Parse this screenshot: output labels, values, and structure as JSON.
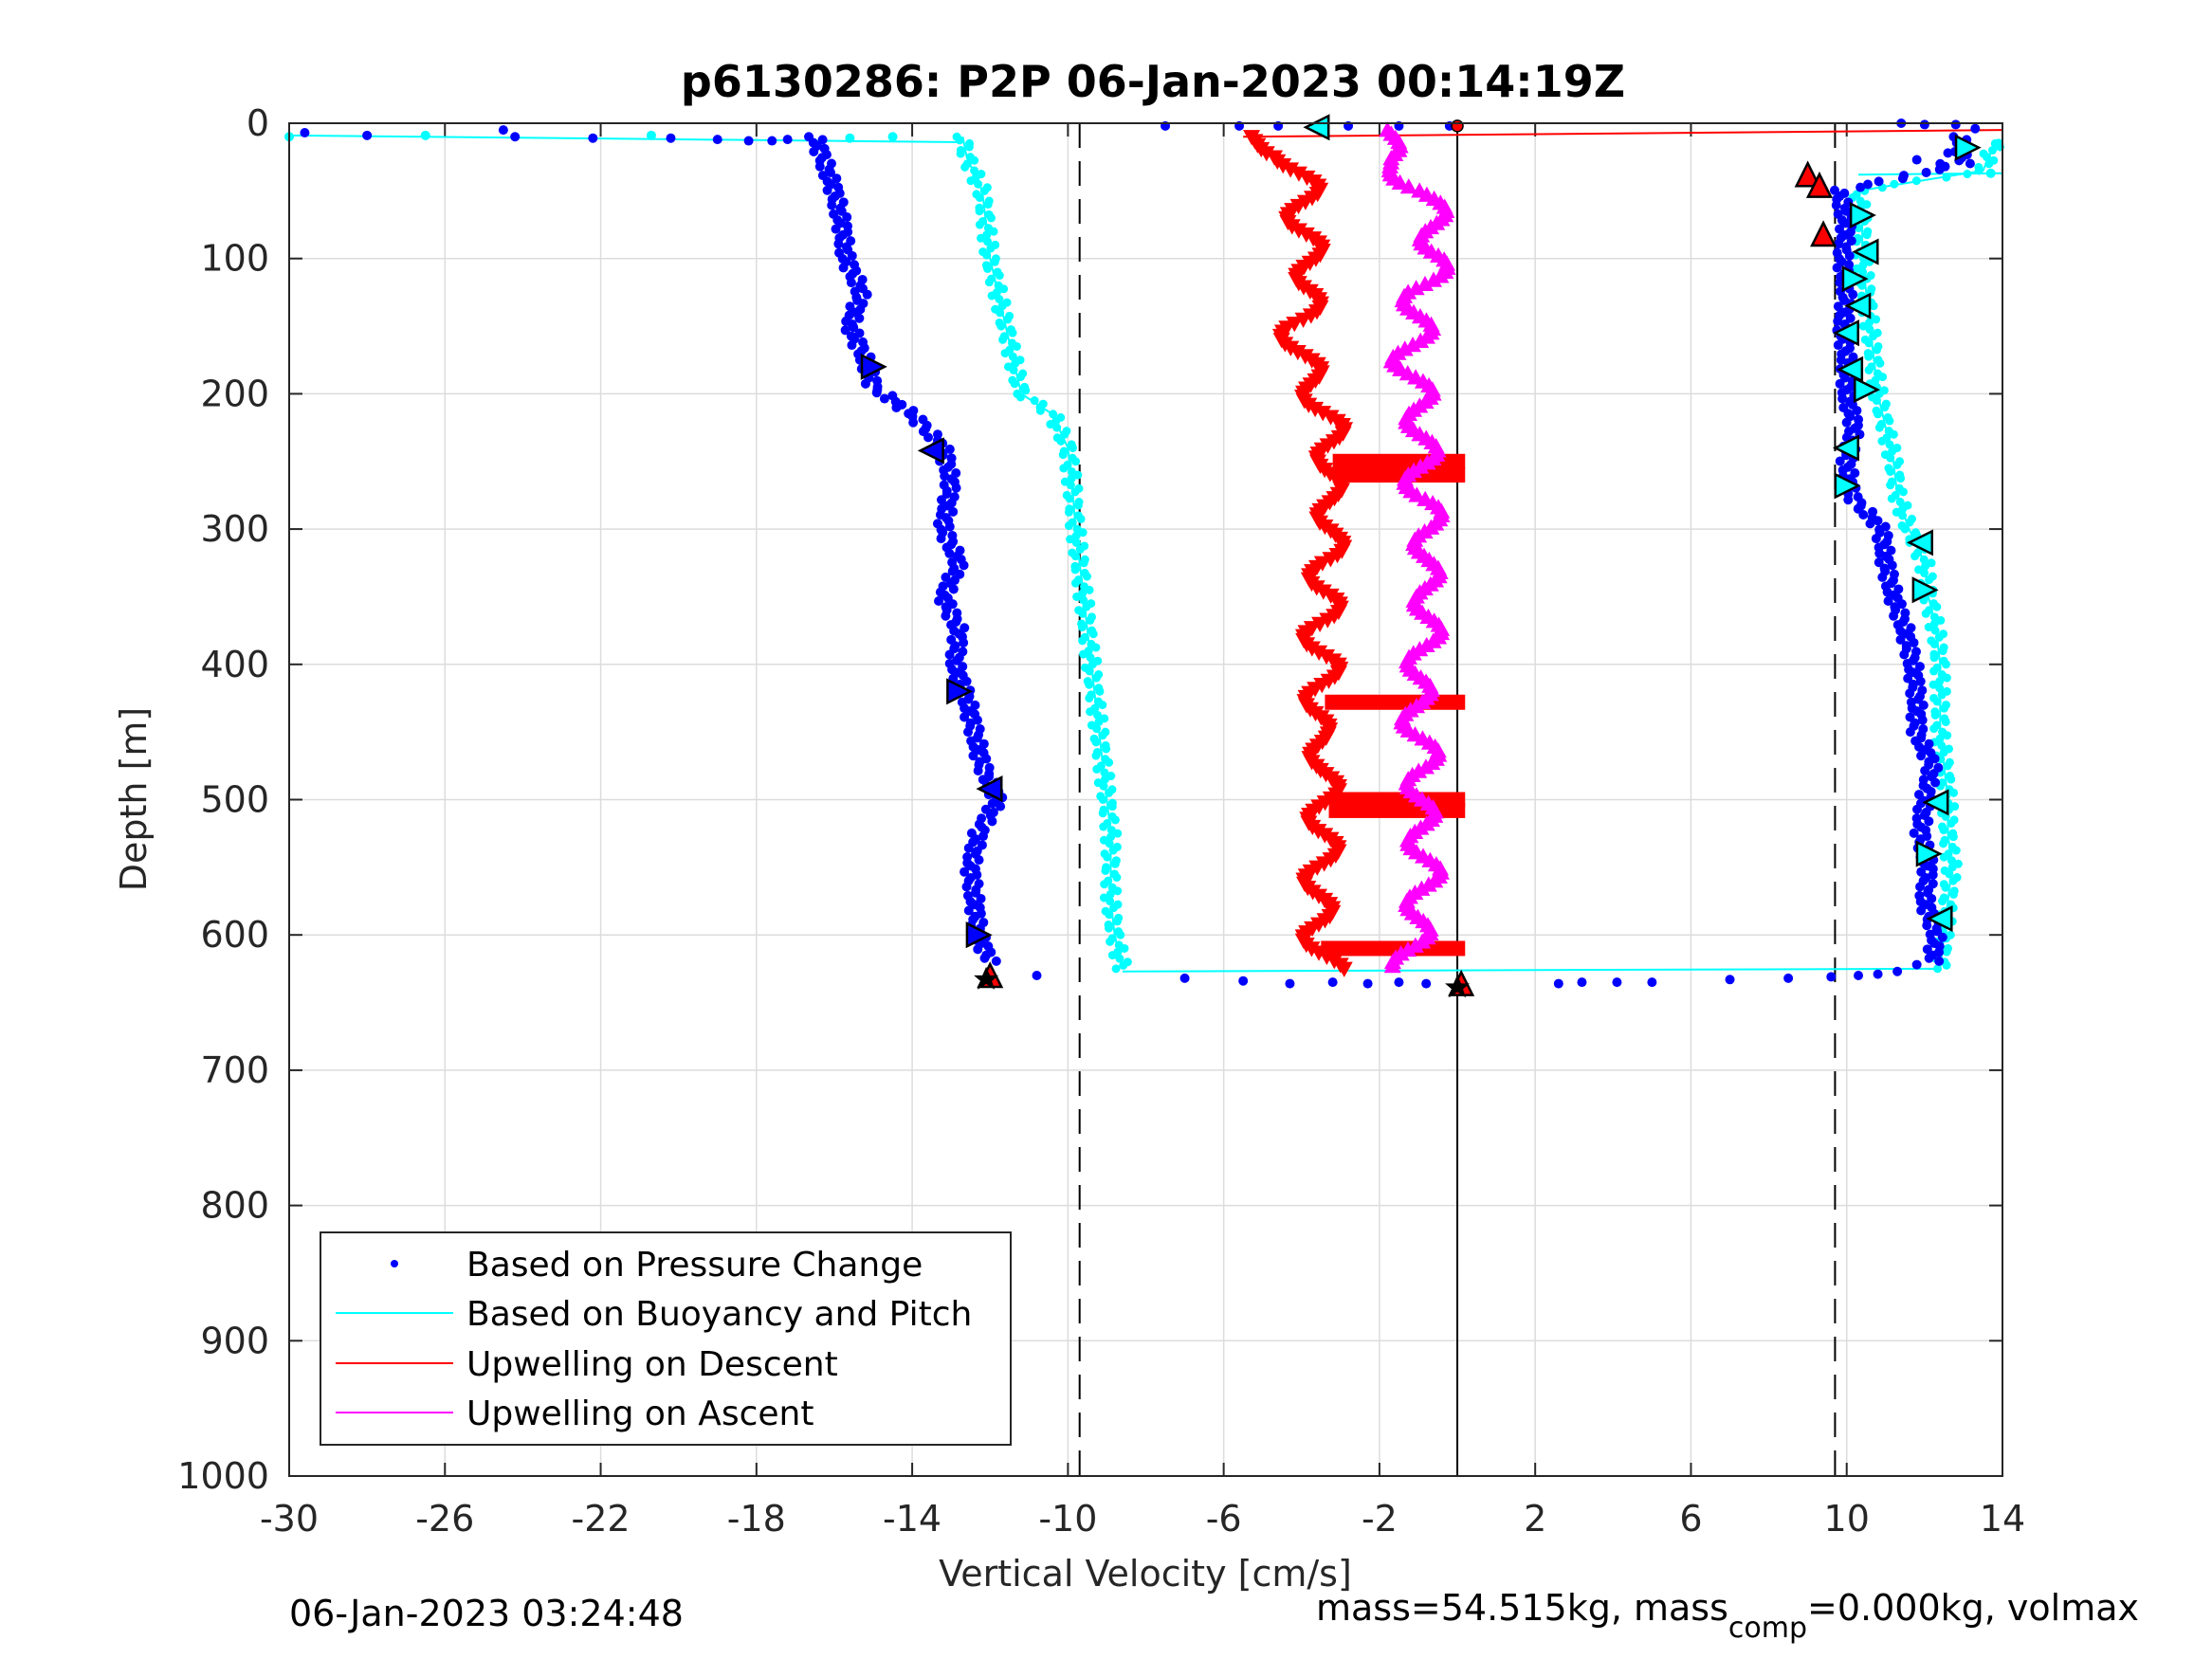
{
  "chart_data": {
    "type": "scatter",
    "title": "p6130286: P2P 06-Jan-2023 00:14:19Z",
    "xlabel": "Vertical Velocity [cm/s]",
    "ylabel": "Depth [m]",
    "xlim": [
      -30,
      14
    ],
    "ylim": [
      0,
      1000
    ],
    "y_reversed": true,
    "grid": true,
    "xticks": [
      "-30",
      "-26",
      "-22",
      "-18",
      "-14",
      "-10",
      "-6",
      "-2",
      "2",
      "6",
      "10",
      "14"
    ],
    "yticks": [
      "0",
      "100",
      "200",
      "300",
      "400",
      "500",
      "600",
      "700",
      "800",
      "900",
      "1000"
    ],
    "reference_lines": {
      "dashed_x": [
        -9.7,
        9.7
      ],
      "solid_x": [
        0
      ]
    },
    "legend": {
      "position": "bottom-left",
      "entries": [
        "Based on Pressure Change",
        "Based on Buoyancy and Pitch",
        "Upwelling on Descent",
        "Upwelling on Ascent"
      ]
    },
    "series": [
      {
        "name": "Based on Pressure Change",
        "color": "#0000ff",
        "marker": "dot",
        "descent": {
          "depth": [
            10,
            25,
            50,
            75,
            100,
            125,
            150,
            175,
            195,
            215,
            240,
            265,
            300,
            325,
            350,
            375,
            400,
            425,
            450,
            475,
            500,
            525,
            550,
            575,
            600,
            620
          ],
          "velocity": [
            -16.5,
            -16.3,
            -16.0,
            -15.8,
            -15.7,
            -15.3,
            -15.6,
            -15.2,
            -15.0,
            -14.0,
            -13.2,
            -13.0,
            -13.2,
            -12.8,
            -13.2,
            -12.8,
            -12.9,
            -12.6,
            -12.4,
            -12.2,
            -11.8,
            -12.3,
            -12.5,
            -12.4,
            -12.3,
            -12.0
          ]
        },
        "ascent": {
          "depth": [
            620,
            600,
            575,
            550,
            525,
            500,
            475,
            450,
            425,
            400,
            375,
            350,
            325,
            300,
            275,
            250,
            225,
            200,
            175,
            150,
            125,
            100,
            75,
            50,
            30,
            10
          ],
          "velocity": [
            12.2,
            12.3,
            12.0,
            12.1,
            11.9,
            12.0,
            12.2,
            11.8,
            11.8,
            11.7,
            11.5,
            11.2,
            11.0,
            10.9,
            10.1,
            10.0,
            10.2,
            10.0,
            10.0,
            9.9,
            10.0,
            9.9,
            10.0,
            9.8,
            13.0,
            12.9
          ]
        }
      },
      {
        "name": "Based on Buoyancy and Pitch",
        "color": "#00ffff",
        "marker": "dot-line",
        "descent": {
          "depth": [
            10,
            25,
            50,
            75,
            100,
            125,
            150,
            175,
            200,
            215,
            240,
            265,
            300,
            325,
            350,
            375,
            400,
            425,
            450,
            475,
            500,
            525,
            550,
            575,
            600,
            625
          ],
          "velocity": [
            -12.7,
            -12.6,
            -12.2,
            -12.1,
            -12.0,
            -11.8,
            -11.6,
            -11.4,
            -11.2,
            -10.4,
            -10.0,
            -9.9,
            -9.8,
            -9.7,
            -9.6,
            -9.5,
            -9.4,
            -9.3,
            -9.2,
            -9.1,
            -9.0,
            -8.9,
            -8.9,
            -8.9,
            -8.8,
            -8.6
          ]
        },
        "ascent": {
          "depth": [
            625,
            600,
            575,
            550,
            525,
            500,
            475,
            450,
            425,
            400,
            375,
            350,
            325,
            300,
            275,
            250,
            225,
            200,
            175,
            150,
            125,
            100,
            75,
            50,
            35,
            15
          ],
          "velocity": [
            12.4,
            12.5,
            12.6,
            12.7,
            12.6,
            12.6,
            12.5,
            12.4,
            12.4,
            12.4,
            12.3,
            12.1,
            12.0,
            11.6,
            11.3,
            11.2,
            11.0,
            10.8,
            10.7,
            10.6,
            10.5,
            10.4,
            10.4,
            10.3,
            13.5,
            13.8
          ]
        }
      },
      {
        "name": "Upwelling on Descent",
        "color": "#ff0000",
        "marker": "triangle-down",
        "depth": [
          10,
          25,
          50,
          75,
          100,
          125,
          150,
          175,
          200,
          225,
          250,
          275,
          300,
          325,
          350,
          375,
          400,
          425,
          450,
          475,
          500,
          525,
          550,
          575,
          600,
          625
        ],
        "velocity": [
          -5.5,
          -4.3,
          -3.9,
          -4.0,
          -3.8,
          -3.7,
          -4.2,
          -4.0,
          -3.6,
          -3.3,
          -3.2,
          -3.4,
          -3.1,
          -3.5,
          -3.3,
          -3.6,
          -3.4,
          -3.5,
          -3.7,
          -3.3,
          -3.5,
          -3.4,
          -3.5,
          -3.6,
          -3.6,
          -3.3
        ]
      },
      {
        "name": "Upwelling on Ascent",
        "color": "#ff00ff",
        "marker": "triangle-up",
        "depth": [
          625,
          600,
          575,
          550,
          525,
          500,
          475,
          450,
          425,
          400,
          375,
          350,
          325,
          300,
          275,
          250,
          225,
          200,
          175,
          150,
          125,
          100,
          75,
          50,
          25,
          5
        ],
        "velocity": [
          -1.3,
          -1.1,
          -0.9,
          -0.8,
          -0.9,
          -1.0,
          -0.8,
          -1.0,
          -1.1,
          -0.9,
          -0.8,
          -0.7,
          -0.9,
          -0.6,
          -1.0,
          -0.9,
          -0.9,
          -1.0,
          -1.3,
          -1.0,
          -1.0,
          -0.5,
          -0.6,
          -0.8,
          -2.0,
          -1.6
        ]
      }
    ]
  },
  "footer": {
    "timestamp": "06-Jan-2023 03:24:48",
    "mass_text": "mass=54.515kg, mass",
    "mass_sub": "comp",
    "mass_text2": "=0.000kg, volmax"
  }
}
